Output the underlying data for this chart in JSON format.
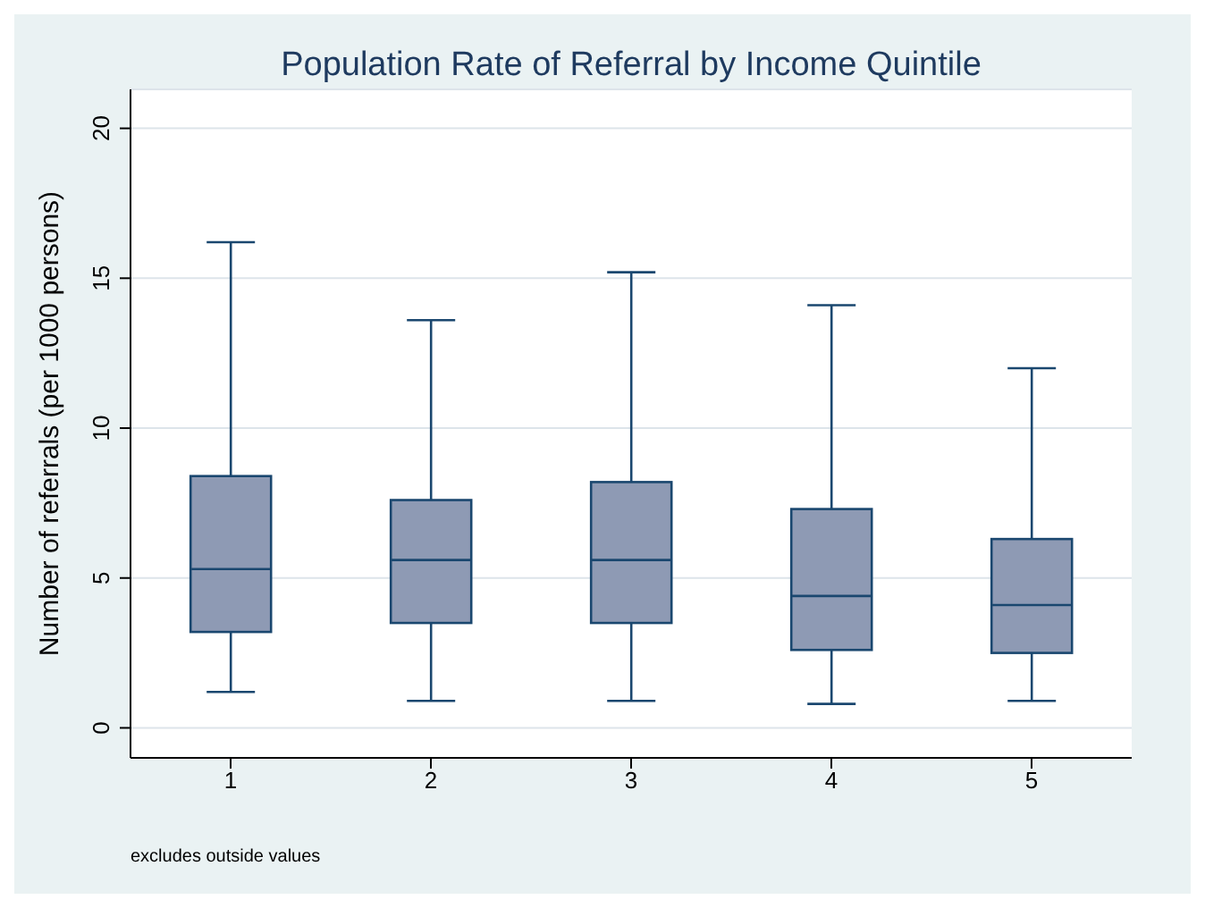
{
  "chart_data": {
    "type": "box",
    "title": "Population Rate of Referral by Income Quintile",
    "ylabel": "Number of referrals (per 1000 persons)",
    "categories": [
      "1",
      "2",
      "3",
      "4",
      "5"
    ],
    "boxes": [
      {
        "low": 1.2,
        "q1": 3.2,
        "median": 5.3,
        "q3": 8.4,
        "high": 16.2
      },
      {
        "low": 0.9,
        "q1": 3.5,
        "median": 5.6,
        "q3": 7.6,
        "high": 13.6
      },
      {
        "low": 0.9,
        "q1": 3.5,
        "median": 5.6,
        "q3": 8.2,
        "high": 15.2
      },
      {
        "low": 0.8,
        "q1": 2.6,
        "median": 4.4,
        "q3": 7.3,
        "high": 14.1
      },
      {
        "low": 0.9,
        "q1": 2.5,
        "median": 4.1,
        "q3": 6.3,
        "high": 12.0
      }
    ],
    "color": "#8e9ab4",
    "ylim": [
      -1,
      21.3
    ],
    "yticks": [
      0,
      5,
      10,
      15,
      20
    ],
    "grid": "y",
    "annotations": [
      "excludes outside values"
    ]
  }
}
